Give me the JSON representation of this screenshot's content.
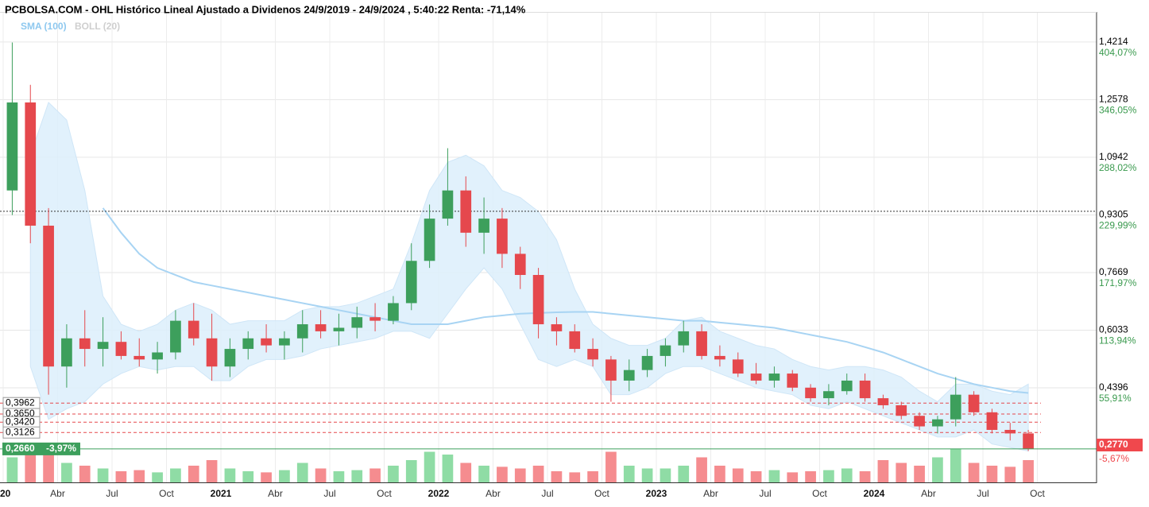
{
  "chart_data": {
    "type": "candlestick",
    "title": "PCBOLSA.COM - OHL Histórico Lineal Ajustado a Dividenos 24/9/2019 - 24/9/2024 , 5:40:22 Renta: -71,14%",
    "x": [
      "2020-01",
      "2020-02",
      "2020-03",
      "2020-04",
      "2020-05",
      "2020-06",
      "2020-07",
      "2020-08",
      "2020-09",
      "2020-10",
      "2020-11",
      "2020-12",
      "2021-01",
      "2021-02",
      "2021-03",
      "2021-04",
      "2021-05",
      "2021-06",
      "2021-07",
      "2021-08",
      "2021-09",
      "2021-10",
      "2021-11",
      "2021-12",
      "2022-01",
      "2022-02",
      "2022-03",
      "2022-04",
      "2022-05",
      "2022-06",
      "2022-07",
      "2022-08",
      "2022-09",
      "2022-10",
      "2022-11",
      "2022-12",
      "2023-01",
      "2023-02",
      "2023-03",
      "2023-04",
      "2023-05",
      "2023-06",
      "2023-07",
      "2023-08",
      "2023-09",
      "2023-10",
      "2023-11",
      "2023-12",
      "2024-01",
      "2024-02",
      "2024-03",
      "2024-04",
      "2024-05",
      "2024-06",
      "2024-07",
      "2024-08",
      "2024-09"
    ],
    "open": [
      1.0,
      1.25,
      0.9,
      0.5,
      0.58,
      0.55,
      0.57,
      0.53,
      0.52,
      0.54,
      0.63,
      0.58,
      0.5,
      0.55,
      0.58,
      0.56,
      0.58,
      0.62,
      0.6,
      0.61,
      0.64,
      0.63,
      0.68,
      0.8,
      0.92,
      1.0,
      0.88,
      0.92,
      0.82,
      0.76,
      0.62,
      0.6,
      0.55,
      0.52,
      0.46,
      0.49,
      0.53,
      0.56,
      0.6,
      0.53,
      0.52,
      0.48,
      0.46,
      0.48,
      0.44,
      0.41,
      0.43,
      0.46,
      0.41,
      0.39,
      0.36,
      0.33,
      0.35,
      0.42,
      0.37,
      0.32,
      0.31
    ],
    "high": [
      1.42,
      1.3,
      0.95,
      0.62,
      0.66,
      0.64,
      0.6,
      0.58,
      0.57,
      0.66,
      0.68,
      0.65,
      0.58,
      0.6,
      0.62,
      0.6,
      0.66,
      0.66,
      0.65,
      0.67,
      0.68,
      0.7,
      0.85,
      0.96,
      1.12,
      1.04,
      0.98,
      0.95,
      0.84,
      0.78,
      0.64,
      0.62,
      0.58,
      0.53,
      0.52,
      0.55,
      0.58,
      0.63,
      0.62,
      0.56,
      0.54,
      0.51,
      0.5,
      0.49,
      0.45,
      0.45,
      0.48,
      0.48,
      0.42,
      0.4,
      0.37,
      0.36,
      0.47,
      0.43,
      0.38,
      0.34,
      0.32
    ],
    "low": [
      0.93,
      0.85,
      0.42,
      0.44,
      0.5,
      0.5,
      0.52,
      0.5,
      0.48,
      0.52,
      0.56,
      0.46,
      0.47,
      0.52,
      0.54,
      0.52,
      0.54,
      0.58,
      0.56,
      0.58,
      0.6,
      0.62,
      0.66,
      0.78,
      0.9,
      0.84,
      0.82,
      0.78,
      0.72,
      0.58,
      0.56,
      0.54,
      0.5,
      0.4,
      0.43,
      0.47,
      0.5,
      0.54,
      0.52,
      0.5,
      0.47,
      0.45,
      0.44,
      0.43,
      0.4,
      0.39,
      0.42,
      0.4,
      0.38,
      0.35,
      0.32,
      0.31,
      0.33,
      0.36,
      0.31,
      0.29,
      0.26
    ],
    "close": [
      1.25,
      0.9,
      0.5,
      0.58,
      0.55,
      0.57,
      0.53,
      0.52,
      0.54,
      0.63,
      0.58,
      0.5,
      0.55,
      0.58,
      0.56,
      0.58,
      0.62,
      0.6,
      0.61,
      0.64,
      0.63,
      0.68,
      0.8,
      0.92,
      1.0,
      0.88,
      0.92,
      0.82,
      0.76,
      0.62,
      0.6,
      0.55,
      0.52,
      0.46,
      0.49,
      0.53,
      0.56,
      0.6,
      0.53,
      0.52,
      0.48,
      0.46,
      0.48,
      0.44,
      0.41,
      0.43,
      0.46,
      0.41,
      0.39,
      0.36,
      0.33,
      0.35,
      0.42,
      0.37,
      0.32,
      0.31,
      0.266
    ],
    "volume": [
      45,
      60,
      70,
      35,
      30,
      25,
      20,
      22,
      18,
      25,
      30,
      40,
      25,
      20,
      18,
      22,
      35,
      25,
      20,
      22,
      25,
      30,
      40,
      55,
      50,
      35,
      30,
      28,
      25,
      30,
      20,
      18,
      20,
      55,
      30,
      25,
      25,
      30,
      45,
      30,
      25,
      20,
      22,
      18,
      20,
      22,
      25,
      20,
      40,
      35,
      30,
      45,
      60,
      35,
      30,
      28,
      40
    ],
    "vlim": [
      0,
      100
    ],
    "up_color": "#3d9f5c",
    "down_color": "#e5484d",
    "vol_up_color": "#8fdca5",
    "vol_down_color": "#f58c8f",
    "sma": {
      "name": "SMA (100)",
      "color": "#a8d4f3",
      "values": [
        null,
        null,
        null,
        null,
        null,
        0.95,
        0.88,
        0.82,
        0.78,
        0.76,
        0.74,
        0.73,
        0.72,
        0.71,
        0.7,
        0.69,
        0.68,
        0.67,
        0.66,
        0.65,
        0.64,
        0.63,
        0.62,
        0.62,
        0.62,
        0.63,
        0.64,
        0.645,
        0.65,
        0.652,
        0.654,
        0.655,
        0.655,
        0.65,
        0.645,
        0.64,
        0.635,
        0.63,
        0.63,
        0.625,
        0.62,
        0.615,
        0.61,
        0.6,
        0.59,
        0.58,
        0.57,
        0.555,
        0.54,
        0.52,
        0.5,
        0.48,
        0.465,
        0.45,
        0.44,
        0.43,
        0.425
      ]
    },
    "boll": {
      "name": "BOLL (20)",
      "color": "#d3d3d3",
      "fill": "#dceefb",
      "upper": [
        null,
        1.1,
        1.25,
        1.2,
        1.0,
        0.7,
        0.62,
        0.6,
        0.62,
        0.66,
        0.68,
        0.66,
        0.62,
        0.63,
        0.63,
        0.63,
        0.66,
        0.67,
        0.67,
        0.68,
        0.7,
        0.72,
        0.85,
        1.0,
        1.08,
        1.1,
        1.07,
        1.0,
        0.98,
        0.94,
        0.86,
        0.72,
        0.62,
        0.58,
        0.56,
        0.56,
        0.58,
        0.63,
        0.64,
        0.6,
        0.58,
        0.56,
        0.55,
        0.52,
        0.5,
        0.49,
        0.5,
        0.5,
        0.49,
        0.47,
        0.43,
        0.4,
        0.45,
        0.45,
        0.43,
        0.42,
        0.45
      ],
      "lower": [
        null,
        0.5,
        0.35,
        0.38,
        0.4,
        0.45,
        0.48,
        0.5,
        0.49,
        0.5,
        0.5,
        0.46,
        0.46,
        0.5,
        0.52,
        0.52,
        0.53,
        0.55,
        0.56,
        0.57,
        0.58,
        0.6,
        0.6,
        0.58,
        0.65,
        0.72,
        0.78,
        0.72,
        0.62,
        0.52,
        0.5,
        0.52,
        0.5,
        0.42,
        0.42,
        0.44,
        0.48,
        0.5,
        0.5,
        0.48,
        0.46,
        0.44,
        0.43,
        0.42,
        0.39,
        0.38,
        0.4,
        0.38,
        0.36,
        0.34,
        0.32,
        0.3,
        0.3,
        0.32,
        0.28,
        0.27,
        0.26
      ]
    },
    "xlim": [
      "2020-01",
      "2025-01"
    ],
    "xticks": [
      {
        "value": "2020-01",
        "label": "20"
      },
      {
        "value": "2020-04",
        "label": "Abr"
      },
      {
        "value": "2020-07",
        "label": "Jul"
      },
      {
        "value": "2020-10",
        "label": "Oct"
      },
      {
        "value": "2021-01",
        "label": "2021"
      },
      {
        "value": "2021-04",
        "label": "Abr"
      },
      {
        "value": "2021-07",
        "label": "Jul"
      },
      {
        "value": "2021-10",
        "label": "Oct"
      },
      {
        "value": "2022-01",
        "label": "2022"
      },
      {
        "value": "2022-04",
        "label": "Abr"
      },
      {
        "value": "2022-07",
        "label": "Jul"
      },
      {
        "value": "2022-10",
        "label": "Oct"
      },
      {
        "value": "2023-01",
        "label": "2023"
      },
      {
        "value": "2023-04",
        "label": "Abr"
      },
      {
        "value": "2023-07",
        "label": "Jul"
      },
      {
        "value": "2023-10",
        "label": "Oct"
      },
      {
        "value": "2024-01",
        "label": "2024"
      },
      {
        "value": "2024-04",
        "label": "Abr"
      },
      {
        "value": "2024-07",
        "label": "Jul"
      },
      {
        "value": "2024-10",
        "label": "Oct"
      }
    ],
    "ylim": [
      0.171,
      1.507
    ],
    "yticks": [
      {
        "value": 1.4214,
        "label": "1,4214"
      },
      {
        "value": 1.2578,
        "label": "1,2578"
      },
      {
        "value": 1.0942,
        "label": "1,0942"
      },
      {
        "value": 0.9305,
        "label": "0,9305"
      },
      {
        "value": 0.7669,
        "label": "0,7669"
      },
      {
        "value": 0.6033,
        "label": "0,6033"
      },
      {
        "value": 0.4396,
        "label": "0,4396"
      }
    ],
    "y2lim": [
      -39.35,
      434.47
    ],
    "y2ticks": [
      {
        "value": 404.07,
        "label": "404,07%"
      },
      {
        "value": 346.05,
        "label": "346,05%"
      },
      {
        "value": 288.02,
        "label": "288,02%"
      },
      {
        "value": 229.99,
        "label": "229,99%"
      },
      {
        "value": 171.97,
        "label": "171,97%"
      },
      {
        "value": 113.94,
        "label": "113,94%"
      },
      {
        "value": 55.91,
        "label": "55,91%"
      }
    ],
    "grid": true,
    "reference_line": 0.9407,
    "levels": [
      {
        "value": 0.3962,
        "label": "0,3962"
      },
      {
        "value": 0.365,
        "label": "0,3650"
      },
      {
        "value": 0.342,
        "label": "0,3420"
      },
      {
        "value": 0.3126,
        "label": "0,3126"
      }
    ],
    "level_color": "#e5484d",
    "last_left": {
      "value": 0.266,
      "label": "0,2660",
      "change": "-3,97%",
      "color": "#3d9f5c"
    },
    "last_right": {
      "value": 0.277,
      "label": "0,2770",
      "color": "#f0484d",
      "change": {
        "value": -5.67,
        "label": "-5,67%"
      }
    }
  }
}
